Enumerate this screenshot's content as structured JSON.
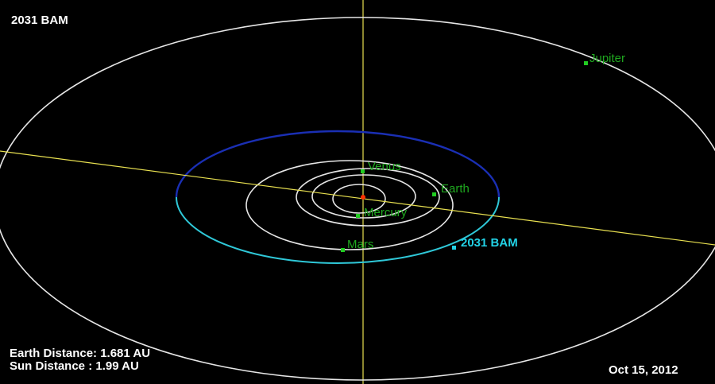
{
  "object_name": "2031 BAM",
  "view_date": "Oct 15, 2012",
  "distances": {
    "earth_label": "Earth Distance",
    "earth_value": ": 1.681 AU",
    "sun_label": "Sun Distance",
    "sun_value": " : 1.99 AU"
  },
  "bodies": {
    "mercury": "Mercury",
    "venus": "Venus",
    "earth": "Earth",
    "mars": "Mars",
    "jupiter": "Jupiter",
    "asteroid": "2031 BAM"
  },
  "colors": {
    "background": "#000000",
    "planet_orbit": "#e6e6e6",
    "axis_line": "#e8e050",
    "planet_marker": "#22cc22",
    "planet_label": "#1fa81f",
    "asteroid_label": "#22d2e6",
    "asteroid_orbit_near": "#2fc8d8",
    "asteroid_orbit_far": "#1a2fb4",
    "sun": "#ff3300",
    "hud_text": "#ffffff"
  }
}
